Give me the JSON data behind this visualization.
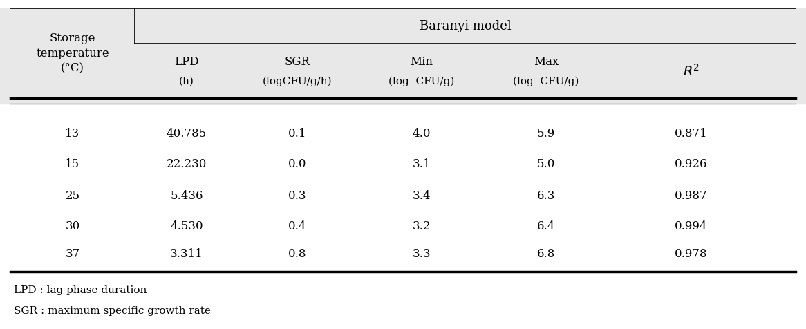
{
  "header_group": "Baranyi model",
  "col0_header": [
    "Storage",
    "temperature",
    "(°C)"
  ],
  "col_headers_top": [
    "LPD",
    "SGR",
    "Min",
    "Max",
    "R²"
  ],
  "col_headers_bot": [
    "(h)",
    "(logCFU/g/h)",
    "(log  CFU/g)",
    "(log  CFU/g)",
    ""
  ],
  "rows": [
    [
      "13",
      "40.785",
      "0.1",
      "4.0",
      "5.9",
      "0.871"
    ],
    [
      "15",
      "22.230",
      "0.0",
      "3.1",
      "5.0",
      "0.926"
    ],
    [
      "25",
      "5.436",
      "0.3",
      "3.4",
      "6.3",
      "0.987"
    ],
    [
      "30",
      "4.530",
      "0.4",
      "3.2",
      "6.4",
      "0.994"
    ],
    [
      "37",
      "3.311",
      "0.8",
      "3.3",
      "6.8",
      "0.978"
    ]
  ],
  "footnotes": [
    "LPD : lag phase duration",
    "SGR : maximum specific growth rate"
  ],
  "header_bg": "#e8e8e8",
  "body_bg": "#ffffff",
  "text_color": "#000000",
  "font_size": 12,
  "header_font_size": 12
}
